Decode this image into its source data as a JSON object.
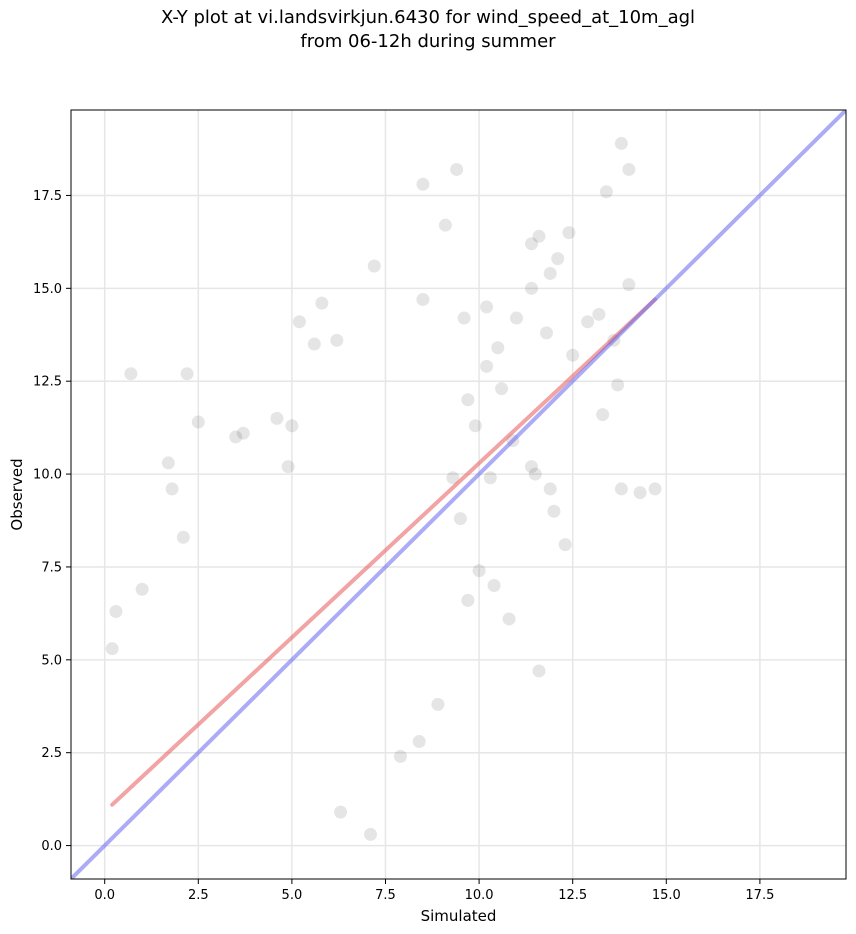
{
  "chart_data": {
    "type": "scatter",
    "title": "X-Y plot at vi.landsvirkjun.6430 for wind_speed_at_10m_agl",
    "subtitle": "from 06-12h during summer",
    "xlabel": "Simulated",
    "ylabel": "Observed",
    "xlim": [
      -0.9,
      19.8
    ],
    "ylim": [
      -0.9,
      19.8
    ],
    "grid": true,
    "x_ticks": [
      "0.0",
      "2.5",
      "5.0",
      "7.5",
      "10.0",
      "12.5",
      "15.0",
      "17.5"
    ],
    "y_ticks": [
      "0.0",
      "2.5",
      "5.0",
      "7.5",
      "10.0",
      "12.5",
      "15.0",
      "17.5"
    ],
    "series": [
      {
        "kind": "points",
        "color": "#000000",
        "opacity": 0.1,
        "points": [
          [
            0.7,
            12.7
          ],
          [
            2.2,
            12.7
          ],
          [
            2.5,
            11.4
          ],
          [
            5.2,
            14.1
          ],
          [
            5.8,
            14.6
          ],
          [
            5.6,
            13.5
          ],
          [
            6.2,
            13.6
          ],
          [
            7.2,
            15.6
          ],
          [
            8.5,
            17.8
          ],
          [
            9.4,
            18.2
          ],
          [
            9.1,
            16.7
          ],
          [
            8.5,
            14.7
          ],
          [
            9.6,
            14.2
          ],
          [
            10.2,
            14.5
          ],
          [
            11.4,
            16.2
          ],
          [
            11.6,
            16.4
          ],
          [
            12.4,
            16.5
          ],
          [
            12.1,
            15.8
          ],
          [
            11.4,
            15.0
          ],
          [
            11.9,
            15.4
          ],
          [
            13.4,
            17.6
          ],
          [
            13.8,
            18.9
          ],
          [
            14.0,
            18.2
          ],
          [
            13.2,
            14.3
          ],
          [
            14.0,
            15.1
          ],
          [
            13.7,
            12.4
          ],
          [
            13.3,
            11.6
          ],
          [
            13.8,
            9.6
          ],
          [
            14.3,
            9.5
          ],
          [
            14.7,
            9.6
          ],
          [
            11.6,
            4.7
          ],
          [
            12.3,
            8.1
          ],
          [
            10.8,
            6.1
          ],
          [
            8.9,
            3.8
          ],
          [
            7.9,
            2.4
          ],
          [
            8.4,
            2.8
          ],
          [
            7.1,
            0.3
          ],
          [
            6.3,
            0.9
          ],
          [
            1.7,
            10.3
          ],
          [
            1.8,
            9.6
          ],
          [
            2.1,
            8.3
          ],
          [
            3.5,
            11.0
          ],
          [
            3.7,
            11.1
          ],
          [
            4.6,
            11.5
          ],
          [
            5.0,
            11.3
          ],
          [
            4.9,
            10.2
          ],
          [
            0.3,
            6.3
          ],
          [
            0.2,
            5.3
          ],
          [
            1.0,
            6.9
          ],
          [
            10.9,
            10.9
          ],
          [
            11.5,
            10.0
          ],
          [
            11.9,
            9.6
          ],
          [
            12.0,
            9.0
          ],
          [
            11.4,
            10.2
          ],
          [
            12.5,
            13.2
          ],
          [
            13.6,
            13.6
          ],
          [
            12.9,
            14.1
          ],
          [
            10.5,
            13.4
          ],
          [
            10.2,
            12.9
          ],
          [
            9.7,
            12.0
          ],
          [
            9.9,
            11.3
          ],
          [
            10.6,
            12.3
          ],
          [
            11.0,
            14.2
          ],
          [
            11.8,
            13.8
          ],
          [
            10.3,
            9.9
          ],
          [
            9.5,
            8.8
          ],
          [
            9.3,
            9.9
          ],
          [
            9.7,
            6.6
          ],
          [
            10.0,
            7.4
          ],
          [
            10.4,
            7.0
          ]
        ]
      },
      {
        "kind": "line",
        "color": "#e85a5a",
        "opacity": 0.55,
        "points": [
          [
            0.2,
            1.1
          ],
          [
            14.7,
            14.7
          ]
        ]
      },
      {
        "kind": "line",
        "color": "#6666ee",
        "opacity": 0.55,
        "points": [
          [
            -0.9,
            -0.9
          ],
          [
            19.8,
            19.8
          ]
        ]
      }
    ]
  }
}
